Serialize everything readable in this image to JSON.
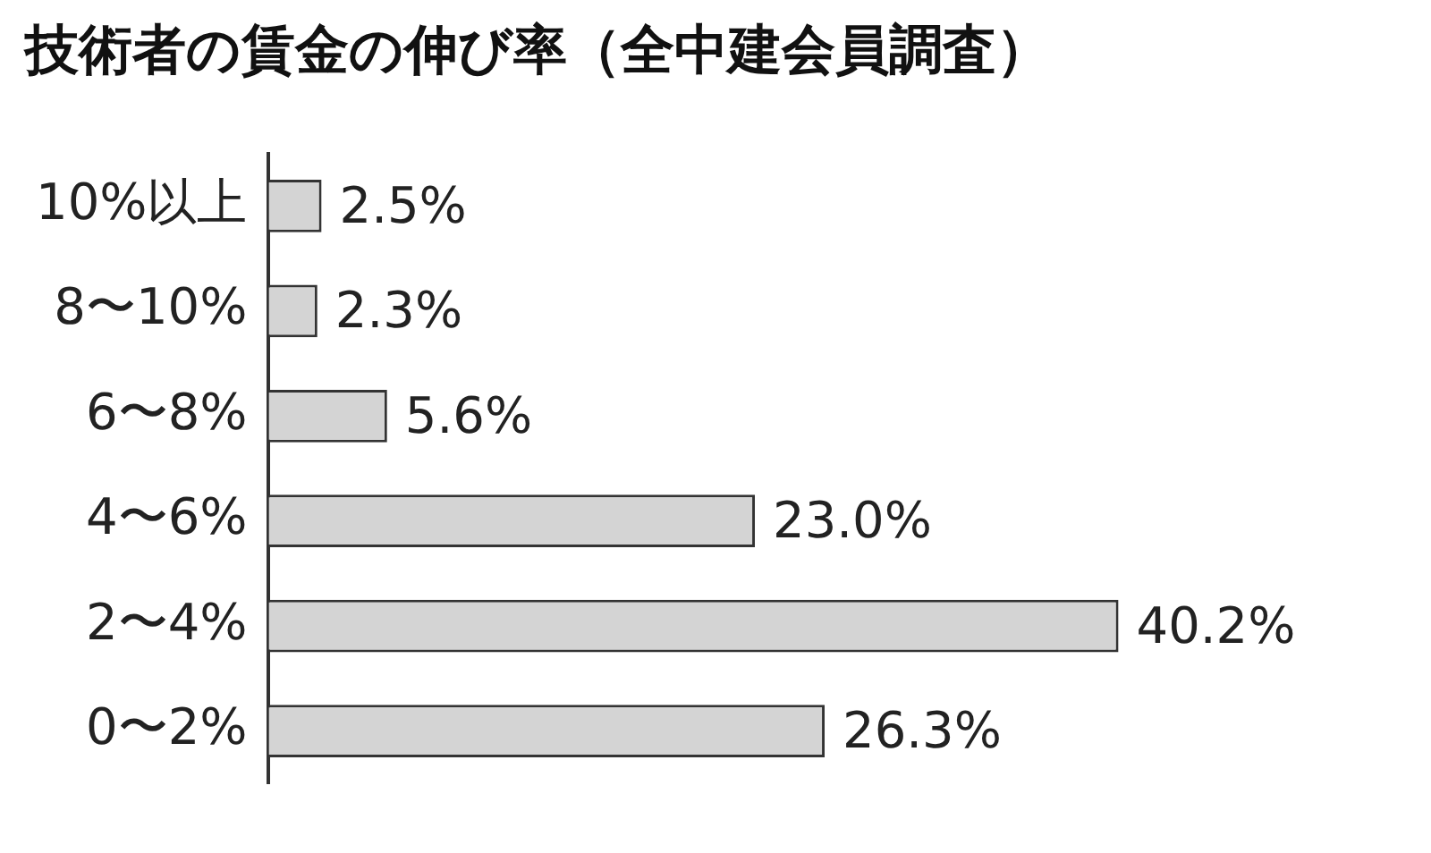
{
  "chart_data": {
    "type": "bar",
    "title": "技術者の賃金の伸び率（全中建会員調査）",
    "orientation": "horizontal",
    "categories": [
      "10%以上",
      "8〜10%",
      "6〜8%",
      "4〜6%",
      "2〜4%",
      "0〜2%"
    ],
    "values": [
      2.5,
      2.3,
      5.6,
      23.0,
      40.2,
      26.3
    ],
    "value_labels": [
      "2.5%",
      "2.3%",
      "5.6%",
      "23.0%",
      "40.2%",
      "26.3%"
    ],
    "color": "#d4d4d4",
    "grid": false,
    "legend": false,
    "tick_labels": "y"
  }
}
